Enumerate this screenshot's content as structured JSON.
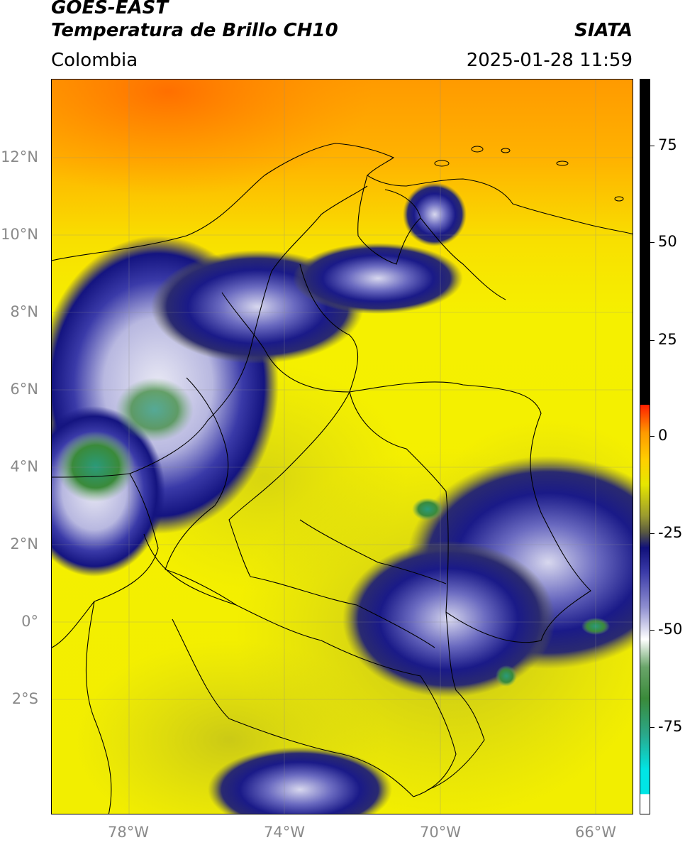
{
  "header": {
    "satellite": "GOES-EAST",
    "product": "Temperatura de Brillo CH10",
    "organization": "SIATA",
    "region": "Colombia",
    "timestamp": "2025-01-28 11:59"
  },
  "map": {
    "projection": "PlateCarree",
    "lon_range": [
      -80,
      -65
    ],
    "lat_range": [
      -5,
      14
    ],
    "gridlines": true,
    "lat_ticks": [
      {
        "value": 12,
        "label": "12°N"
      },
      {
        "value": 10,
        "label": "10°N"
      },
      {
        "value": 8,
        "label": "8°N"
      },
      {
        "value": 6,
        "label": "6°N"
      },
      {
        "value": 4,
        "label": "4°N"
      },
      {
        "value": 2,
        "label": "2°N"
      },
      {
        "value": 0,
        "label": "0°"
      },
      {
        "value": -2,
        "label": "2°S"
      }
    ],
    "lon_ticks": [
      {
        "value": -78,
        "label": "78°W"
      },
      {
        "value": -74,
        "label": "74°W"
      },
      {
        "value": -70,
        "label": "70°W"
      },
      {
        "value": -66,
        "label": "66°W"
      }
    ],
    "colors": {
      "warm_background": "#f5e600",
      "hot_north": "#ff8c00",
      "cold_cloud": "#1a1a8c",
      "very_cold_cloud": "#dcdcf0",
      "coldest": "#3a8a3a"
    }
  },
  "colorbar": {
    "range": [
      -95,
      90
    ],
    "ticks": [
      {
        "value": 75,
        "label": "75"
      },
      {
        "value": 50,
        "label": "50"
      },
      {
        "value": 25,
        "label": "25"
      },
      {
        "value": 0,
        "label": "0"
      },
      {
        "value": -25,
        "label": "-25"
      },
      {
        "value": -50,
        "label": "-50"
      },
      {
        "value": -75,
        "label": "-75"
      }
    ],
    "stops": [
      {
        "value": -95,
        "color": "#ffffff"
      },
      {
        "value": -90.1,
        "color": "#ffffff"
      },
      {
        "value": -90,
        "color": "#00e5e5"
      },
      {
        "value": -84,
        "color": "#00e5e5"
      },
      {
        "value": -75,
        "color": "#2aa88a"
      },
      {
        "value": -66,
        "color": "#3a8a3a"
      },
      {
        "value": -58,
        "color": "#6aa56a"
      },
      {
        "value": -51,
        "color": "#ffffff"
      },
      {
        "value": -43,
        "color": "#8f8fd0"
      },
      {
        "value": -34,
        "color": "#3a3aa8"
      },
      {
        "value": -28,
        "color": "#10107a"
      },
      {
        "value": -24,
        "color": "#5a5a40"
      },
      {
        "value": -20,
        "color": "#9a9a30"
      },
      {
        "value": -12,
        "color": "#e6e600"
      },
      {
        "value": -6,
        "color": "#ffd000"
      },
      {
        "value": 1,
        "color": "#ff9a00"
      },
      {
        "value": 8,
        "color": "#ff2000"
      },
      {
        "value": 8.1,
        "color": "#000000"
      },
      {
        "value": 90,
        "color": "#000000"
      }
    ]
  }
}
